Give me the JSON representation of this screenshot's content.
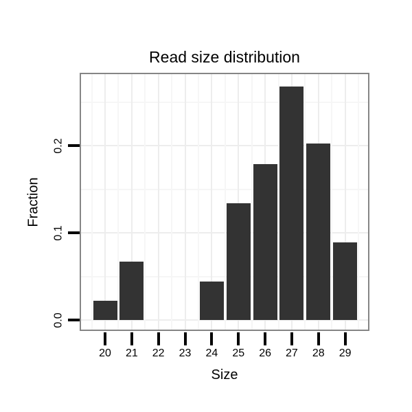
{
  "chart_data": {
    "type": "bar",
    "title": "Read size distribution",
    "xlabel": "Size",
    "ylabel": "Fraction",
    "categories": [
      "20",
      "21",
      "22",
      "23",
      "24",
      "25",
      "26",
      "27",
      "28",
      "29"
    ],
    "values": [
      0.022,
      0.067,
      0,
      0,
      0.044,
      0.134,
      0.179,
      0.268,
      0.202,
      0.089
    ],
    "ytick_labels": [
      "0.0",
      "0.1",
      "0.2"
    ],
    "ytick_values": [
      0.0,
      0.1,
      0.2
    ],
    "ylim": [
      -0.013,
      0.283
    ],
    "grid": {
      "major": true,
      "minor": true
    },
    "legend_position": "none",
    "colors": {
      "bar": "#333333",
      "panel_border": "#858585",
      "grid_major": "#ededed",
      "grid_minor": "#f6f6f6",
      "axis_tick": "#000000",
      "text": "#000000",
      "background": "#ffffff"
    }
  }
}
